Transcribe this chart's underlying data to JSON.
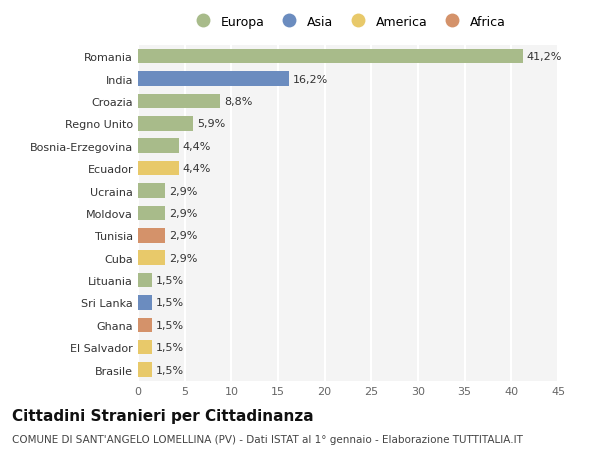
{
  "countries": [
    "Romania",
    "India",
    "Croazia",
    "Regno Unito",
    "Bosnia-Erzegovina",
    "Ecuador",
    "Ucraina",
    "Moldova",
    "Tunisia",
    "Cuba",
    "Lituania",
    "Sri Lanka",
    "Ghana",
    "El Salvador",
    "Brasile"
  ],
  "values": [
    41.2,
    16.2,
    8.8,
    5.9,
    4.4,
    4.4,
    2.9,
    2.9,
    2.9,
    2.9,
    1.5,
    1.5,
    1.5,
    1.5,
    1.5
  ],
  "categories": [
    "Europa",
    "Asia",
    "Europa",
    "Europa",
    "Europa",
    "America",
    "Europa",
    "Europa",
    "Africa",
    "America",
    "Europa",
    "Asia",
    "Africa",
    "America",
    "America"
  ],
  "colors": {
    "Europa": "#a8bb8a",
    "Asia": "#6b8cbf",
    "America": "#e8c96a",
    "Africa": "#d4926a"
  },
  "legend_order": [
    "Europa",
    "Asia",
    "America",
    "Africa"
  ],
  "xlim": [
    0,
    45
  ],
  "xticks": [
    0,
    5,
    10,
    15,
    20,
    25,
    30,
    35,
    40,
    45
  ],
  "title": "Cittadini Stranieri per Cittadinanza",
  "subtitle": "COMUNE DI SANT'ANGELO LOMELLINA (PV) - Dati ISTAT al 1° gennaio - Elaborazione TUTTITALIA.IT",
  "bg_color": "#f4f4f4",
  "bar_height": 0.65,
  "label_fontsize": 8,
  "tick_fontsize": 8,
  "title_fontsize": 11,
  "subtitle_fontsize": 7.5
}
